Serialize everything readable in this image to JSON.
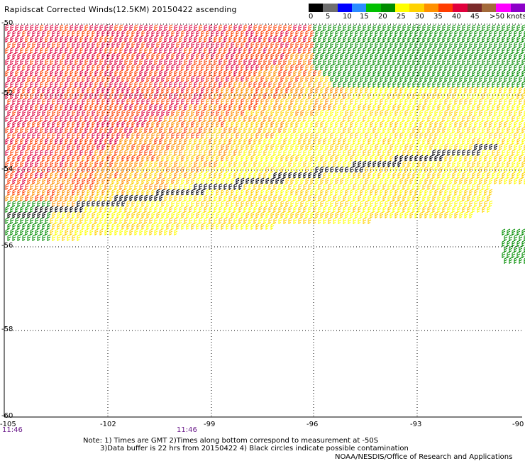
{
  "title": "Rapidscat Corrected Winds(12.5KM) 20150422 ascending",
  "legend": {
    "colors": [
      "#000000",
      "#6e6e6e",
      "#0000ff",
      "#2c8cff",
      "#00c000",
      "#008c00",
      "#ffff00",
      "#ffd200",
      "#ff9000",
      "#ff3c00",
      "#e0003c",
      "#7a2a2a",
      "#a36a3a",
      "#ff00ff",
      "#8c00c8"
    ],
    "tick_labels": [
      "0",
      "5",
      "10",
      "15",
      "20",
      "25",
      "30",
      "35",
      "40",
      "45",
      ">50 knots"
    ]
  },
  "axes": {
    "lat_labels": [
      "-50",
      "-52",
      "-54",
      "-56",
      "-58",
      "-60"
    ],
    "lon_labels": [
      "-105",
      "-102",
      "-99",
      "-96",
      "-93",
      "-90"
    ]
  },
  "time_labels": [
    "11:46",
    "11:46"
  ],
  "notes": [
    "Note: 1) Times are GMT 2)Times along bottom correspond to measurement at -50S",
    "3)Data buffer is 22 hrs from 20150422 4) Black circles indicate possible contamination"
  ],
  "credit": "NOAA/NESDIS/Office of Research and Applications",
  "barb_colors": {
    "high": "#e0003c",
    "mid_high": "#ff3c00",
    "mid": "#ff9000",
    "low_mid": "#ffd200",
    "low": "#ffff00",
    "green": "#008c00",
    "black": "#000000",
    "blue": "#0000ff"
  }
}
